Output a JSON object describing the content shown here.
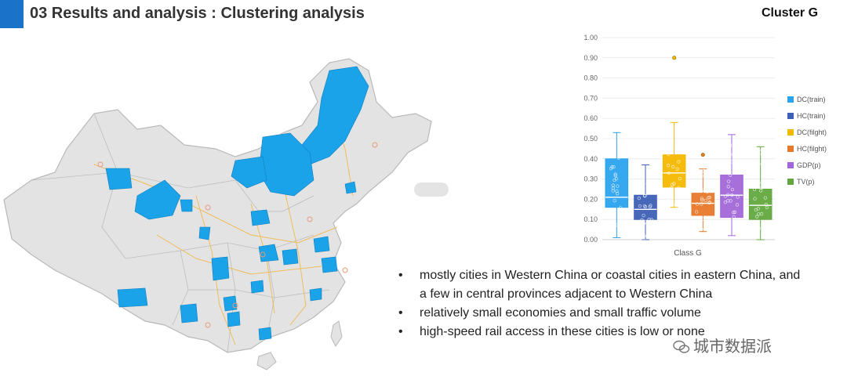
{
  "header": {
    "title": "03 Results and analysis : Clustering analysis",
    "cluster_label": "Cluster G",
    "accent_color": "#1a73c8"
  },
  "map": {
    "description_icon": "china-map-icon",
    "highlight_color": "#1aa3e8",
    "base_color": "#e3e3e3",
    "road_color": "#f2b84b"
  },
  "bullets": [
    "mostly cities in Western China or coastal cities in eastern China, and a few in central provinces adjacent to Western China",
    "relatively small economies and small traffic volume",
    "high-speed rail access in these cities is low or none"
  ],
  "watermark": {
    "text": "城市数据派",
    "icon": "wechat-icon"
  },
  "chart_data": {
    "type": "box",
    "title": "",
    "xlabel": "Class G",
    "ylabel": "",
    "ylim": [
      0,
      1
    ],
    "yticks": [
      "0.00",
      "0.10",
      "0.20",
      "0.30",
      "0.40",
      "0.50",
      "0.60",
      "0.70",
      "0.80",
      "0.90",
      "1.00"
    ],
    "series": [
      {
        "name": "DC(train)",
        "color": "#2aa3ef",
        "min": 0.01,
        "q1": 0.16,
        "median": 0.21,
        "q3": 0.4,
        "max": 0.53,
        "outliers": []
      },
      {
        "name": "HC(train)",
        "color": "#3d5fb5",
        "min": 0.0,
        "q1": 0.1,
        "median": 0.15,
        "q3": 0.22,
        "max": 0.37,
        "outliers": []
      },
      {
        "name": "DC(filght)",
        "color": "#f5b800",
        "min": 0.16,
        "q1": 0.26,
        "median": 0.33,
        "q3": 0.42,
        "max": 0.58,
        "outliers": [
          0.9
        ]
      },
      {
        "name": "HC(filght)",
        "color": "#e8782a",
        "min": 0.04,
        "q1": 0.12,
        "median": 0.18,
        "q3": 0.23,
        "max": 0.35,
        "outliers": [
          0.42
        ]
      },
      {
        "name": "GDP(p)",
        "color": "#a267d8",
        "min": 0.02,
        "q1": 0.11,
        "median": 0.22,
        "q3": 0.32,
        "max": 0.52,
        "outliers": []
      },
      {
        "name": "TV(p)",
        "color": "#62a83e",
        "min": 0.0,
        "q1": 0.1,
        "median": 0.17,
        "q3": 0.25,
        "max": 0.46,
        "outliers": []
      }
    ],
    "legend_position": "right"
  }
}
